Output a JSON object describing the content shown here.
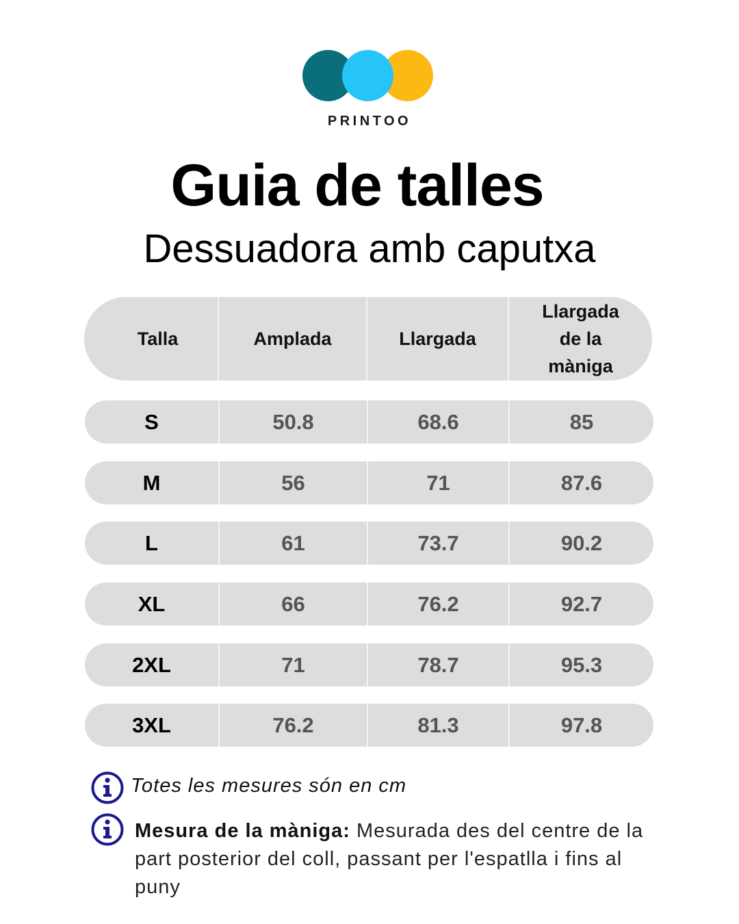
{
  "brand": {
    "name": "PRINTOO",
    "colors": [
      "#0B6E7B",
      "#27C4F8",
      "#FDB913"
    ]
  },
  "title": "Guia de talles",
  "subtitle": "Dessuadora amb caputxa",
  "table": {
    "headers": [
      "Talla",
      "Amplada",
      "Llargada",
      "Llargada de la màniga"
    ],
    "rows": [
      [
        "S",
        "50.8",
        "68.6",
        "85"
      ],
      [
        "M",
        "56",
        "71",
        "87.6"
      ],
      [
        "L",
        "61",
        "73.7",
        "90.2"
      ],
      [
        "XL",
        "66",
        "76.2",
        "92.7"
      ],
      [
        "2XL",
        "71",
        "78.7",
        "95.3"
      ],
      [
        "3XL",
        "76.2",
        "81.3",
        "97.8"
      ]
    ]
  },
  "notes": {
    "units": "Totes les mesures són en cm",
    "sleeve_label": "Mesura de la màniga:",
    "sleeve_text": "Mesurada des del centre de la part posterior del coll, passant per l'espatlla i fins al puny"
  },
  "icons": {
    "info": "info-icon",
    "info_color": "#1B1A8F"
  }
}
